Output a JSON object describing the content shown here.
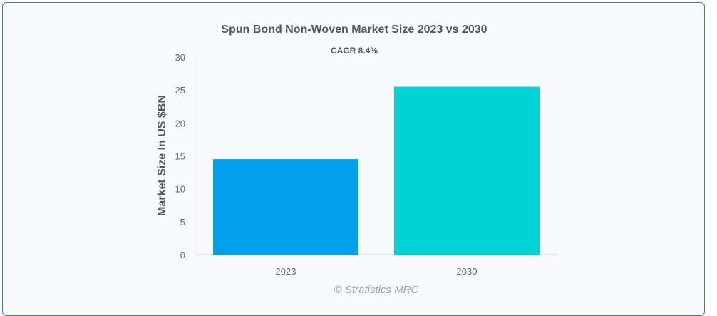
{
  "chart_data": {
    "type": "bar",
    "title": "Spun Bond Non-Woven Market Size 2023 vs 2030",
    "subtitle": "CAGR 8.4%",
    "xlabel": "",
    "ylabel": "Market Size In US $BN",
    "categories": [
      "2023",
      "2030"
    ],
    "values": [
      14.5,
      25.5
    ],
    "ylim": [
      0,
      30
    ],
    "yticks": [
      0,
      5,
      10,
      15,
      20,
      25,
      30
    ],
    "colors": [
      "#00a0ec",
      "#00d3d3"
    ],
    "grid": false,
    "legend": "none"
  },
  "credit": "© Stratistics MRC"
}
